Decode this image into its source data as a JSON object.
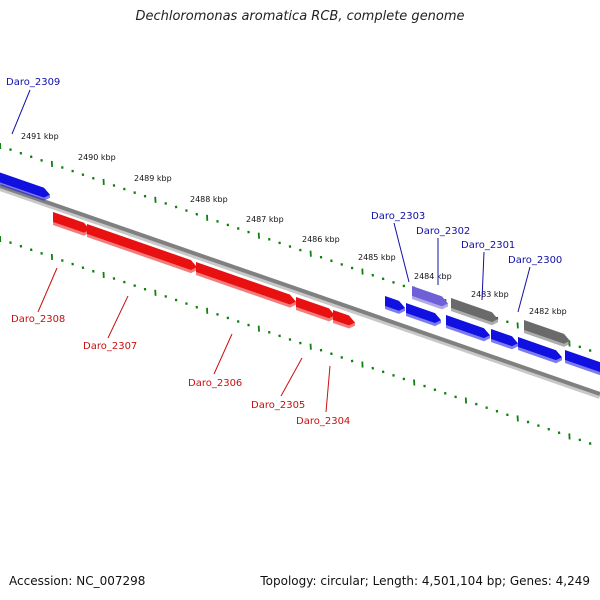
{
  "title": "Dechloromonas aromatica RCB, complete genome",
  "footer": {
    "accession": "Accession: NC_007298",
    "summary": "Topology: circular; Length: 4,501,104 bp; Genes: 4,249"
  },
  "colors": {
    "forward_gene": "#1010e0",
    "reverse_gene": "#e81010",
    "pseudo_gene": "#6a6a6a",
    "highlight_gene": "#7060d8",
    "tick": "#108010",
    "axis": "#808080",
    "forward_label": "#1010a8",
    "reverse_label": "#c81010"
  },
  "ticks": [
    {
      "label": "2491 kbp"
    },
    {
      "label": "2490 kbp"
    },
    {
      "label": "2489 kbp"
    },
    {
      "label": "2488 kbp"
    },
    {
      "label": "2487 kbp"
    },
    {
      "label": "2486 kbp"
    },
    {
      "label": "2485 kbp"
    },
    {
      "label": "2484 kbp"
    },
    {
      "label": "2483 kbp"
    },
    {
      "label": "2482 kbp"
    }
  ],
  "genes": [
    {
      "id": "Daro_2309",
      "strand": "forward",
      "type": "cds"
    },
    {
      "id": "Daro_2308",
      "strand": "reverse",
      "type": "cds"
    },
    {
      "id": "Daro_2307",
      "strand": "reverse",
      "type": "cds"
    },
    {
      "id": "Daro_2306",
      "strand": "reverse",
      "type": "cds"
    },
    {
      "id": "Daro_2305",
      "strand": "reverse",
      "type": "cds"
    },
    {
      "id": "Daro_2304",
      "strand": "reverse",
      "type": "cds"
    },
    {
      "id": "Daro_2303",
      "strand": "forward",
      "type": "cds"
    },
    {
      "id": "Daro_2302",
      "strand": "forward",
      "type": "highlight"
    },
    {
      "id": "Daro_2301",
      "strand": "forward",
      "type": "pseudo"
    },
    {
      "id": "Daro_2300",
      "strand": "forward",
      "type": "pseudo"
    }
  ]
}
